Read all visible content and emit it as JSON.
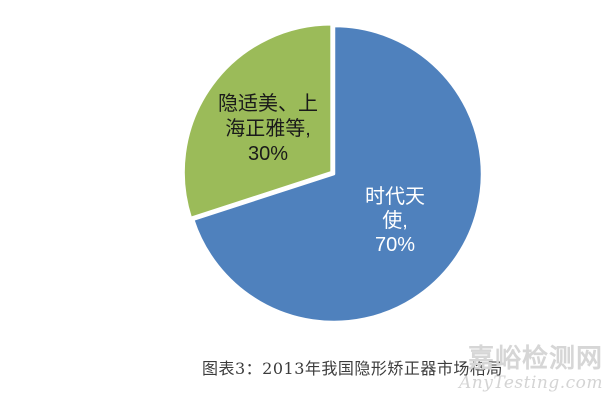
{
  "chart_data": {
    "type": "pie",
    "title": "图表3：2013年我国隐形矫正器市场格局",
    "legend": "none",
    "background": "#FFFFFF",
    "start_angle_deg": 0,
    "direction": "clockwise",
    "slices": [
      {
        "name": "时代天使",
        "value": 70,
        "color": "#4F81BD",
        "label_color": "#FFFFFF",
        "label_text": "时代天使, 70%",
        "label_lines": [
          "时代天",
          "使,",
          "70%"
        ]
      },
      {
        "name": "隐适美、上海正雅等",
        "value": 30,
        "color": "#9BBB59",
        "label_color": "#1A1A1A",
        "label_text": "隐适美、上海正雅等, 30%",
        "label_lines": [
          "隐适美、上",
          "海正雅等,",
          "30%"
        ]
      }
    ]
  },
  "watermark": {
    "cn": "嘉峪检测网",
    "en": "AnyTesting.com",
    "color": "#D6D6D6"
  }
}
